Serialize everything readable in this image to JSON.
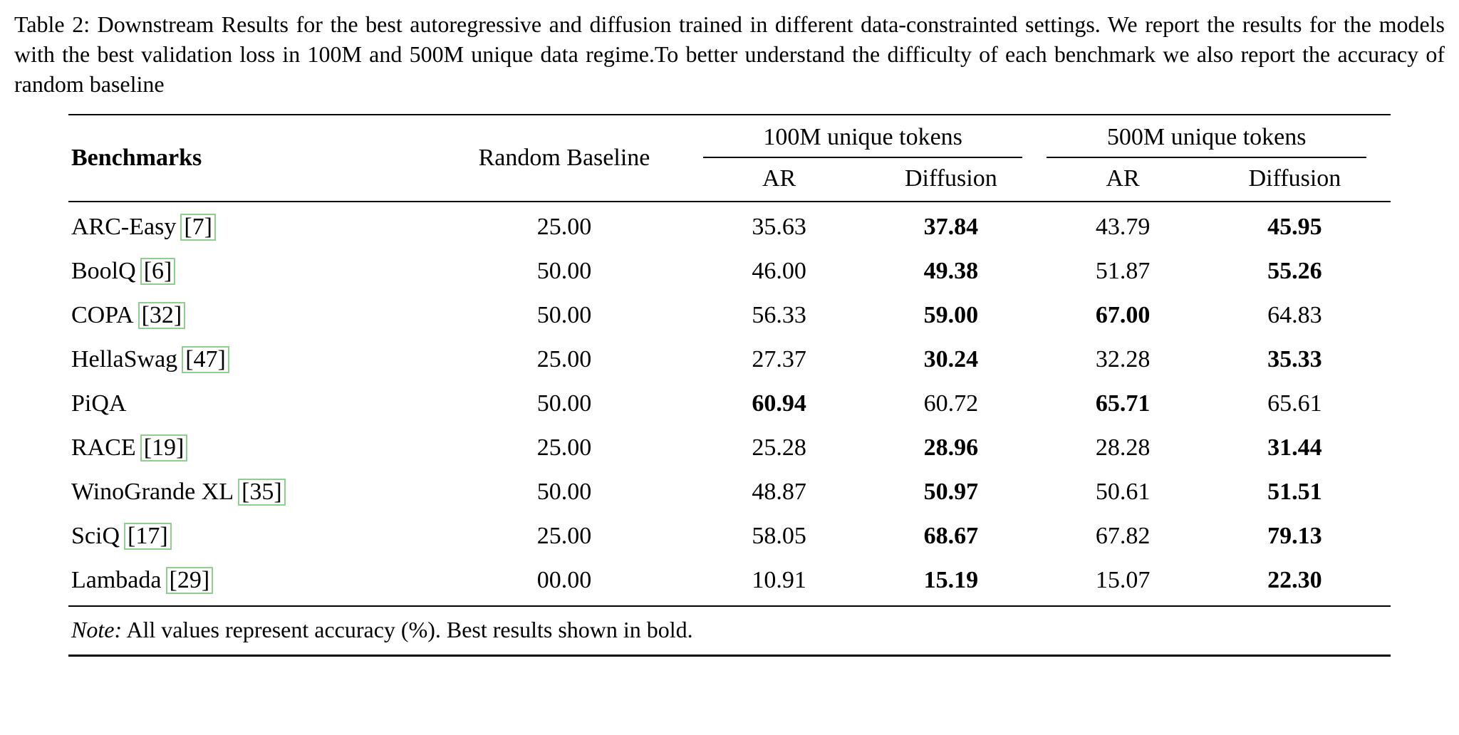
{
  "caption": {
    "label": "Table 2:",
    "text": " Downstream Results for the best autoregressive and diffusion trained in different data-constrainted settings. We report the results for the models with the best validation loss in 100M and 500M unique data regime.To better understand the difficulty of each benchmark we also report the accuracy of random baseline"
  },
  "table": {
    "headers": {
      "benchmarks": "Benchmarks",
      "random_baseline": "Random Baseline",
      "group_100m": "100M unique tokens",
      "group_500m": "500M unique tokens",
      "ar_100m": "AR",
      "diffusion_100m": "Diffusion",
      "ar_500m": "AR",
      "diffusion_500m": "Diffusion"
    },
    "cite_box_color": "#8fce8f",
    "rows": [
      {
        "name": "ARC-Easy",
        "cite": "[7]",
        "random": "25.00",
        "ar100": {
          "v": "35.63",
          "b": false
        },
        "diff100": {
          "v": "37.84",
          "b": true
        },
        "ar500": {
          "v": "43.79",
          "b": false
        },
        "diff500": {
          "v": "45.95",
          "b": true
        }
      },
      {
        "name": "BoolQ",
        "cite": "[6]",
        "random": "50.00",
        "ar100": {
          "v": "46.00",
          "b": false
        },
        "diff100": {
          "v": "49.38",
          "b": true
        },
        "ar500": {
          "v": "51.87",
          "b": false
        },
        "diff500": {
          "v": "55.26",
          "b": true
        }
      },
      {
        "name": "COPA",
        "cite": "[32]",
        "random": "50.00",
        "ar100": {
          "v": "56.33",
          "b": false
        },
        "diff100": {
          "v": "59.00",
          "b": true
        },
        "ar500": {
          "v": "67.00",
          "b": true
        },
        "diff500": {
          "v": "64.83",
          "b": false
        }
      },
      {
        "name": "HellaSwag",
        "cite": "[47]",
        "random": "25.00",
        "ar100": {
          "v": "27.37",
          "b": false
        },
        "diff100": {
          "v": "30.24",
          "b": true
        },
        "ar500": {
          "v": "32.28",
          "b": false
        },
        "diff500": {
          "v": "35.33",
          "b": true
        }
      },
      {
        "name": "PiQA",
        "cite": "",
        "random": "50.00",
        "ar100": {
          "v": "60.94",
          "b": true
        },
        "diff100": {
          "v": "60.72",
          "b": false
        },
        "ar500": {
          "v": "65.71",
          "b": true
        },
        "diff500": {
          "v": "65.61",
          "b": false
        }
      },
      {
        "name": "RACE",
        "cite": "[19]",
        "random": "25.00",
        "ar100": {
          "v": "25.28",
          "b": false
        },
        "diff100": {
          "v": "28.96",
          "b": true
        },
        "ar500": {
          "v": "28.28",
          "b": false
        },
        "diff500": {
          "v": "31.44",
          "b": true
        }
      },
      {
        "name": "WinoGrande XL",
        "cite": "[35]",
        "random": "50.00",
        "ar100": {
          "v": "48.87",
          "b": false
        },
        "diff100": {
          "v": "50.97",
          "b": true
        },
        "ar500": {
          "v": "50.61",
          "b": false
        },
        "diff500": {
          "v": "51.51",
          "b": true
        }
      },
      {
        "name": "SciQ",
        "cite": "[17]",
        "random": "25.00",
        "ar100": {
          "v": "58.05",
          "b": false
        },
        "diff100": {
          "v": "68.67",
          "b": true
        },
        "ar500": {
          "v": "67.82",
          "b": false
        },
        "diff500": {
          "v": "79.13",
          "b": true
        }
      },
      {
        "name": "Lambada",
        "cite": "[29]",
        "random": "00.00",
        "ar100": {
          "v": "10.91",
          "b": false
        },
        "diff100": {
          "v": "15.19",
          "b": true
        },
        "ar500": {
          "v": "15.07",
          "b": false
        },
        "diff500": {
          "v": "22.30",
          "b": true
        }
      }
    ]
  },
  "note": {
    "label": "Note:",
    "text": " All values represent accuracy (%). Best results shown in bold."
  }
}
